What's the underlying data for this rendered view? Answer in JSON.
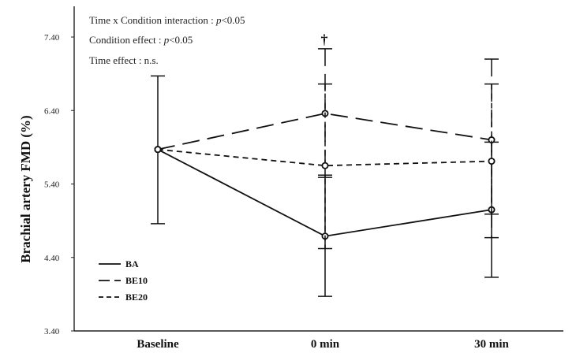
{
  "chart_data": {
    "type": "line",
    "categories": [
      "Baseline",
      "0 min",
      "30 min"
    ],
    "ylabel": "Brachial artery FMD (%)",
    "xlabel": "",
    "ylim": [
      3.4,
      7.4
    ],
    "yticks": [
      "3.40",
      "4.40",
      "5.40",
      "6.40",
      "7.40"
    ],
    "series": [
      {
        "name": "BA",
        "values": [
          5.87,
          4.69,
          5.05
        ],
        "err_lo": [
          4.86,
          3.87,
          4.13
        ],
        "err_hi": [
          6.87,
          5.52,
          5.97
        ],
        "color": "#111111"
      },
      {
        "name": "BE10",
        "values": [
          5.87,
          6.36,
          6.0
        ],
        "err_lo": [
          4.86,
          5.49,
          4.67
        ],
        "err_hi": [
          6.87,
          7.24,
          7.1
        ],
        "color": "#111111"
      },
      {
        "name": "BE20",
        "values": [
          5.87,
          5.65,
          5.71
        ],
        "err_lo": [
          4.86,
          4.52,
          4.99
        ],
        "err_hi": [
          6.87,
          6.76,
          6.76
        ],
        "color": "#111111"
      }
    ],
    "annotations": {
      "line1_prefix": "Time x Condition interaction : ",
      "line1_p": "p",
      "line1_suffix": "<0.05",
      "line2_prefix": "Condition effect : ",
      "line2_p": "p",
      "line2_suffix": "<0.05",
      "line3": "Time effect : n.s.",
      "significance_marker": "†"
    },
    "legend_placement": "bottom-left",
    "grid": false
  }
}
